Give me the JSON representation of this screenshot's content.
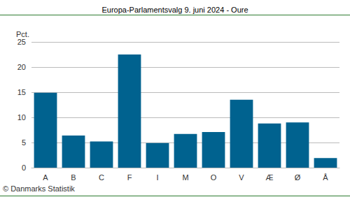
{
  "chart_data": {
    "type": "bar",
    "title": "Europa-Parlamentsvalg 9. juni 2024 - Oure",
    "ylabel": "Pct.",
    "annotations": [
      "© Danmarks Statistik"
    ],
    "categories": [
      "A",
      "B",
      "C",
      "F",
      "I",
      "M",
      "O",
      "V",
      "Æ",
      "Ø",
      "Å"
    ],
    "values": [
      14.9,
      6.4,
      5.2,
      22.5,
      4.9,
      6.7,
      7.1,
      13.5,
      8.8,
      9.0,
      1.9
    ],
    "color": "#00628f",
    "ylim": [
      0,
      25
    ],
    "yticks": [
      0,
      5,
      10,
      15,
      20,
      25
    ],
    "grid": true
  }
}
